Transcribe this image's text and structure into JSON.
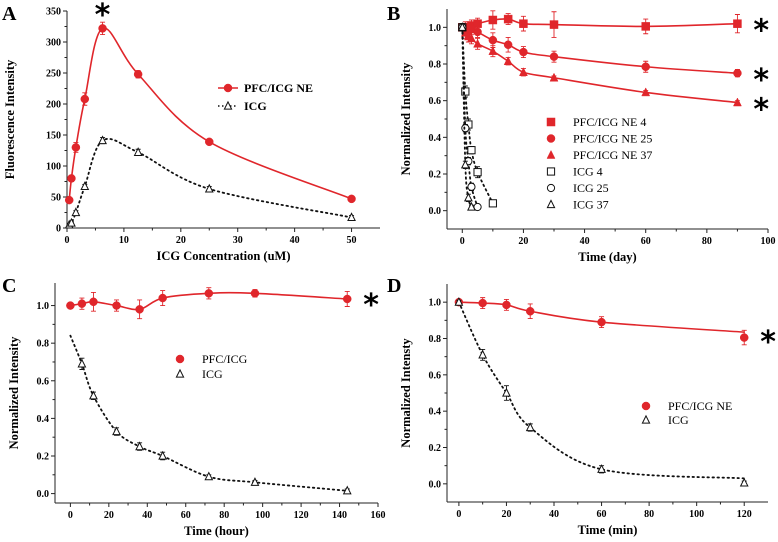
{
  "colors": {
    "red": "#e0262b",
    "black": "#111111"
  },
  "chart_data": [
    {
      "panel": "A",
      "type": "line",
      "xlabel": "ICG Concentration (uM)",
      "ylabel": "Fluorescence Intensity",
      "xlim": [
        0,
        55
      ],
      "ylim": [
        0,
        350
      ],
      "xticks": [
        0,
        10,
        20,
        30,
        40,
        50
      ],
      "yticks": [
        0,
        50,
        100,
        150,
        200,
        250,
        300,
        350
      ],
      "legend": "center-right",
      "annotations": [
        {
          "text": "*",
          "x": 6.25,
          "y": 350
        }
      ],
      "series": [
        {
          "name": "PFC/ICG NE",
          "color": "#e0262b",
          "marker": "circle-filled",
          "line": "solid",
          "x": [
            0.39,
            0.78,
            1.56,
            3.125,
            6.25,
            12.5,
            25,
            50
          ],
          "y": [
            45,
            80,
            130,
            208,
            322,
            248,
            139,
            47
          ],
          "err": [
            3,
            5,
            8,
            10,
            10,
            6,
            3,
            3
          ]
        },
        {
          "name": "ICG",
          "color": "#111111",
          "marker": "triangle-open",
          "line": "dotted",
          "x": [
            0.39,
            0.78,
            1.56,
            3.125,
            6.25,
            12.5,
            25,
            50
          ],
          "y": [
            5,
            8,
            25,
            67,
            141,
            122,
            63,
            17
          ],
          "err": [
            2,
            2,
            3,
            3,
            5,
            5,
            4,
            3
          ]
        }
      ]
    },
    {
      "panel": "B",
      "type": "scatter",
      "xlabel": "Time (day)",
      "ylabel": "Normalized Intensity",
      "xlim": [
        -5,
        100
      ],
      "ylim": [
        -0.1,
        1.1
      ],
      "xticks": [
        0,
        20,
        40,
        60,
        80,
        100
      ],
      "yticks": [
        "0.0",
        "0.2",
        "0.4",
        "0.6",
        "0.8",
        "1.0"
      ],
      "legend": "center",
      "annotations": [
        {
          "text": "*",
          "x": 90,
          "y": 1.02
        },
        {
          "text": "*",
          "x": 90,
          "y": 0.75
        },
        {
          "text": "*",
          "x": 90,
          "y": 0.59
        }
      ],
      "series": [
        {
          "name": "PFC/ICG NE  4",
          "color": "#e0262b",
          "marker": "square-filled",
          "line": "solid",
          "x": [
            0,
            1,
            2,
            3,
            5,
            10,
            15,
            20,
            30,
            60,
            90
          ],
          "y": [
            1.0,
            1.0,
            1.0,
            1.01,
            1.02,
            1.04,
            1.045,
            1.02,
            1.015,
            1.005,
            1.02
          ],
          "err": [
            0.02,
            0.03,
            0.03,
            0.03,
            0.03,
            0.05,
            0.03,
            0.04,
            0.07,
            0.04,
            0.05
          ]
        },
        {
          "name": "PFC/ICG NE 25",
          "color": "#e0262b",
          "marker": "circle-filled",
          "line": "solid",
          "x": [
            0,
            1,
            2,
            3,
            5,
            10,
            15,
            20,
            30,
            60,
            90
          ],
          "y": [
            1.0,
            0.99,
            0.98,
            0.99,
            0.975,
            0.93,
            0.905,
            0.865,
            0.84,
            0.785,
            0.75
          ],
          "err": [
            0.02,
            0.03,
            0.03,
            0.03,
            0.03,
            0.04,
            0.04,
            0.03,
            0.03,
            0.03,
            0.02
          ]
        },
        {
          "name": "PFC/ICG NE 37",
          "color": "#e0262b",
          "marker": "triangle-filled",
          "line": "solid",
          "x": [
            0,
            1,
            2,
            3,
            5,
            10,
            15,
            20,
            30,
            60,
            90
          ],
          "y": [
            1.0,
            0.97,
            0.95,
            0.94,
            0.91,
            0.87,
            0.815,
            0.755,
            0.725,
            0.645,
            0.59
          ],
          "err": [
            0.02,
            0.03,
            0.03,
            0.03,
            0.03,
            0.03,
            0.02,
            0.02,
            0.01,
            0.01,
            0.01
          ]
        },
        {
          "name": "ICG  4",
          "color": "#111111",
          "marker": "square-open",
          "line": "dotted",
          "x": [
            0,
            1,
            2,
            3,
            5,
            10
          ],
          "y": [
            1.0,
            0.65,
            0.47,
            0.33,
            0.21,
            0.04
          ],
          "err": [
            0.02,
            0.03,
            0.03,
            0.02,
            0.03,
            0.01
          ]
        },
        {
          "name": "ICG 25",
          "color": "#111111",
          "marker": "circle-open",
          "line": "dotted",
          "x": [
            0,
            1,
            2,
            3,
            5
          ],
          "y": [
            1.0,
            0.45,
            0.27,
            0.13,
            0.02
          ],
          "err": [
            0.02,
            0.02,
            0.02,
            0.02,
            0.01
          ]
        },
        {
          "name": "ICG 37",
          "color": "#111111",
          "marker": "triangle-open",
          "line": "dotted",
          "x": [
            0,
            1,
            2,
            3
          ],
          "y": [
            1.0,
            0.25,
            0.07,
            0.02
          ],
          "err": [
            0.02,
            0.02,
            0.02,
            0.01
          ]
        }
      ]
    },
    {
      "panel": "C",
      "type": "scatter",
      "xlabel": "Time (hour)",
      "ylabel": "Normalized Intensity",
      "xlim": [
        -8,
        160
      ],
      "ylim": [
        -0.05,
        1.12
      ],
      "xticks": [
        0,
        20,
        40,
        60,
        80,
        100,
        120,
        140,
        160
      ],
      "yticks": [
        "0.0",
        "0.2",
        "0.4",
        "0.6",
        "0.8",
        "1.0"
      ],
      "legend": "center",
      "annotations": [
        {
          "text": "*",
          "x": 144,
          "y": 1.04
        }
      ],
      "series": [
        {
          "name": "PFC/ICG",
          "color": "#e0262b",
          "marker": "circle-filled",
          "line": "solid",
          "x": [
            0,
            6,
            12,
            24,
            36,
            48,
            72,
            96,
            144
          ],
          "y": [
            1.0,
            1.01,
            1.02,
            1.0,
            0.98,
            1.04,
            1.065,
            1.065,
            1.035
          ],
          "err": [
            0.01,
            0.03,
            0.05,
            0.03,
            0.05,
            0.04,
            0.03,
            0.02,
            0.04
          ]
        },
        {
          "name": "ICG",
          "color": "#111111",
          "marker": "triangle-open",
          "line": "dotted",
          "x": [
            6,
            12,
            24,
            36,
            48,
            72,
            96,
            144
          ],
          "y": [
            0.69,
            0.52,
            0.33,
            0.25,
            0.2,
            0.09,
            0.06,
            0.015
          ],
          "err": [
            0.03,
            0.02,
            0.02,
            0.02,
            0.02,
            0.01,
            0.01,
            0.01
          ],
          "fit_start": [
            0,
            0.84
          ]
        }
      ]
    },
    {
      "panel": "D",
      "type": "scatter",
      "xlabel": "Time (min)",
      "ylabel": "Normalized Intensty",
      "xlim": [
        -5,
        130
      ],
      "ylim": [
        -0.1,
        1.1
      ],
      "xticks": [
        0,
        20,
        40,
        60,
        80,
        100,
        120
      ],
      "yticks": [
        "0.0",
        "0.2",
        "0.4",
        "0.6",
        "0.8",
        "1.0"
      ],
      "legend": "center-right",
      "annotations": [
        {
          "text": "*",
          "x": 120,
          "y": 0.82
        }
      ],
      "series": [
        {
          "name": "PFC/ICG NE",
          "color": "#e0262b",
          "marker": "circle-filled",
          "line": "solid",
          "x": [
            0,
            10,
            20,
            30,
            60,
            120
          ],
          "y": [
            1.0,
            0.995,
            0.985,
            0.95,
            0.89,
            0.805
          ],
          "err": [
            0.01,
            0.03,
            0.03,
            0.04,
            0.03,
            0.04
          ],
          "fit_end": [
            120,
            0.835
          ]
        },
        {
          "name": "ICG",
          "color": "#111111",
          "marker": "triangle-open",
          "line": "dotted",
          "x": [
            0,
            10,
            20,
            30,
            60,
            120
          ],
          "y": [
            1.0,
            0.71,
            0.5,
            0.31,
            0.08,
            0.005
          ],
          "err": [
            0.01,
            0.03,
            0.04,
            0.02,
            0.02,
            0.01
          ],
          "fit_end": [
            120,
            0.03
          ]
        }
      ]
    }
  ]
}
